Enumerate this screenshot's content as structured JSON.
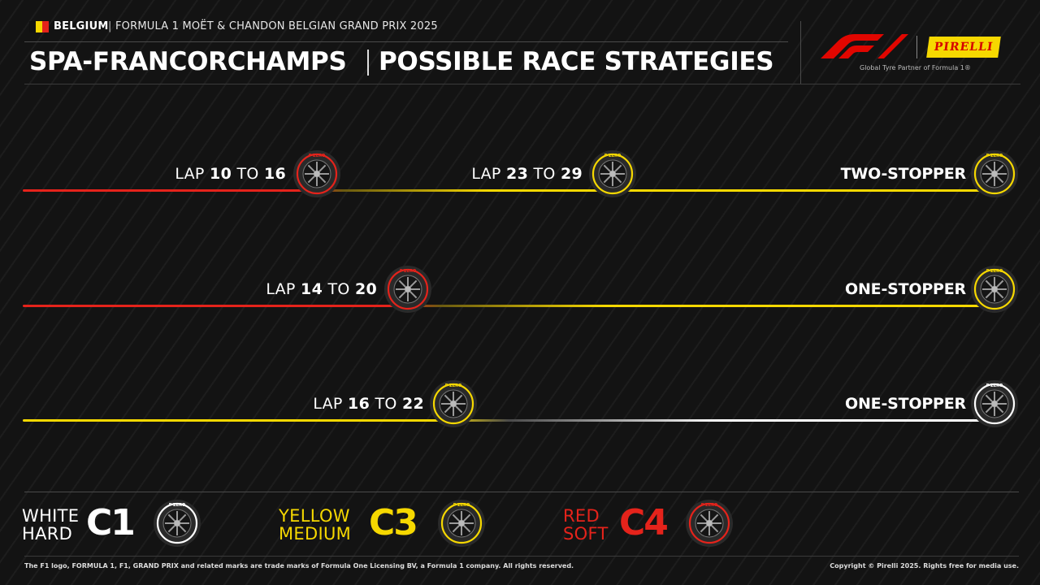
{
  "header": {
    "flag_colors": [
      "#111111",
      "#f6d800",
      "#e5231b"
    ],
    "country": "BELGIUM",
    "separator": "|",
    "event": "FORMULA 1 MOËT & CHANDON BELGIAN GRAND PRIX 2025",
    "circuit": "SPA-FRANCORCHAMPS",
    "title": "POSSIBLE RACE STRATEGIES"
  },
  "logos": {
    "f1": "f1-logo",
    "pirelli_text": "PIRELLI",
    "partner_text": "Global Tyre Partner of Formula 1®"
  },
  "colors": {
    "soft": "#e5231b",
    "medium": "#f6d800",
    "hard": "#ffffff",
    "background": "#131313"
  },
  "tyre_brand_text": "P ZERO",
  "strategies": [
    {
      "name": "TWO-STOPPER",
      "stints": [
        "soft",
        "medium",
        "medium"
      ],
      "stops": [
        {
          "prefix": "LAP",
          "from": "10",
          "to_word": "TO",
          "to": "16"
        },
        {
          "prefix": "LAP",
          "from": "23",
          "to_word": "TO",
          "to": "29"
        }
      ]
    },
    {
      "name": "ONE-STOPPER",
      "stints": [
        "soft",
        "medium"
      ],
      "stops": [
        {
          "prefix": "LAP",
          "from": "14",
          "to_word": "TO",
          "to": "20"
        }
      ]
    },
    {
      "name": "ONE-STOPPER",
      "stints": [
        "medium",
        "hard"
      ],
      "stops": [
        {
          "prefix": "LAP",
          "from": "16",
          "to_word": "TO",
          "to": "22"
        }
      ]
    }
  ],
  "legend": [
    {
      "compound": "hard",
      "line1": "WHITE",
      "line2": "HARD",
      "code": "C1"
    },
    {
      "compound": "medium",
      "line1": "YELLOW",
      "line2": "MEDIUM",
      "code": "C3"
    },
    {
      "compound": "soft",
      "line1": "RED",
      "line2": "SOFT",
      "code": "C4"
    }
  ],
  "footer": {
    "left": "The F1 logo, FORMULA 1, F1, GRAND PRIX and related marks are trade marks of Formula One Licensing BV, a Formula 1 company. All rights reserved.",
    "right": "Copyright © Pirelli 2025. Rights free for media use."
  }
}
